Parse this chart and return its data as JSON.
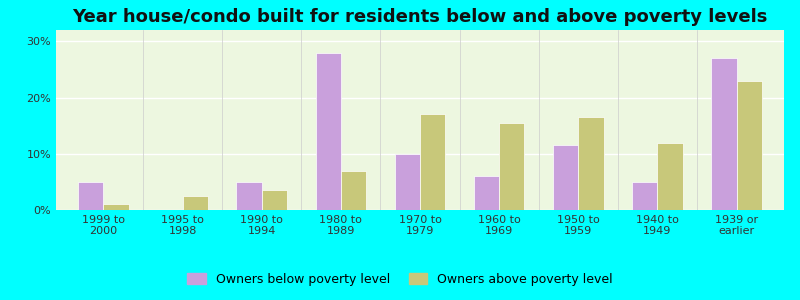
{
  "title": "Year house/condo built for residents below and above poverty levels",
  "categories": [
    "1999 to\n2000",
    "1995 to\n1998",
    "1990 to\n1994",
    "1980 to\n1989",
    "1970 to\n1979",
    "1960 to\n1969",
    "1950 to\n1959",
    "1940 to\n1949",
    "1939 or\nearlier"
  ],
  "below_poverty": [
    5.0,
    0.0,
    5.0,
    28.0,
    10.0,
    6.0,
    11.5,
    5.0,
    27.0
  ],
  "above_poverty": [
    1.0,
    2.5,
    3.5,
    7.0,
    17.0,
    15.5,
    16.5,
    12.0,
    23.0
  ],
  "below_color": "#c9a0dc",
  "above_color": "#c8c87a",
  "background_color": "#00ffff",
  "plot_bg": "#edf7e0",
  "ylim": [
    0,
    32
  ],
  "yticks": [
    0,
    10,
    20,
    30
  ],
  "title_fontsize": 13,
  "tick_fontsize": 8,
  "legend_below": "Owners below poverty level",
  "legend_above": "Owners above poverty level"
}
